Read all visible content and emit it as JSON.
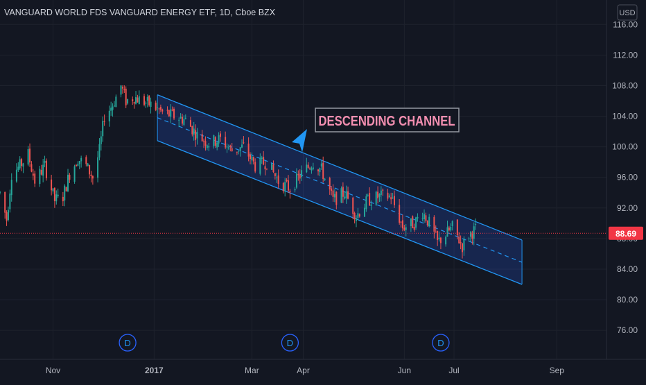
{
  "symbol": {
    "title": "VANGUARD WORLD FDS VANGUARD ENERGY ETF, 1D, Cboe BZX"
  },
  "currency": "USD",
  "last_price": {
    "value": 88.69,
    "label": "88.69",
    "color": "#f23645"
  },
  "annotation": {
    "text": "DESCENDING CHANNEL",
    "text_color": "#f48fb1",
    "border_color": "#9598a1",
    "arrow_color": "#2196f3"
  },
  "dividend_markers": [
    {
      "label": "D",
      "date": "2016-12-16"
    },
    {
      "label": "D",
      "date": "2017-03-24"
    },
    {
      "label": "D",
      "date": "2017-06-23"
    }
  ],
  "chart_data": {
    "type": "candlestick",
    "title": "VANGUARD WORLD FDS VANGUARD ENERGY ETF, 1D, Cboe BZX",
    "xlim": [
      "2016-09-30",
      "2017-10-01"
    ],
    "ylim": [
      72.2,
      119.2
    ],
    "y_ticks": [
      "116.00",
      "112.00",
      "108.00",
      "104.00",
      "100.00",
      "96.00",
      "92.00",
      "88.00",
      "84.00",
      "80.00",
      "76.00"
    ],
    "x_ticks": [
      {
        "label": "Nov",
        "date": "2016-11-01"
      },
      {
        "label": "2017",
        "date": "2017-01-01"
      },
      {
        "label": "Mar",
        "date": "2017-03-01"
      },
      {
        "label": "Apr",
        "date": "2017-04-01"
      },
      {
        "label": "Jun",
        "date": "2017-06-01"
      },
      {
        "label": "Jul",
        "date": "2017-07-01"
      },
      {
        "label": "Sep",
        "date": "2017-09-01"
      }
    ],
    "up_color": "#26a69a",
    "down_color": "#ef5350",
    "grid": true,
    "price_path": [
      [
        "2016-09-30",
        94.0
      ],
      [
        "2016-10-04",
        90.5
      ],
      [
        "2016-10-07",
        96.5
      ],
      [
        "2016-10-12",
        97.5
      ],
      [
        "2016-10-17",
        99.0
      ],
      [
        "2016-10-21",
        95.5
      ],
      [
        "2016-10-27",
        97.5
      ],
      [
        "2016-11-02",
        93.0
      ],
      [
        "2016-11-07",
        93.5
      ],
      [
        "2016-11-11",
        96.5
      ],
      [
        "2016-11-16",
        98.5
      ],
      [
        "2016-11-21",
        97.5
      ],
      [
        "2016-11-25",
        96.0
      ],
      [
        "2016-11-29",
        99.5
      ],
      [
        "2016-12-02",
        104.0
      ],
      [
        "2016-12-07",
        105.5
      ],
      [
        "2016-12-12",
        108.0
      ],
      [
        "2016-12-15",
        106.0
      ],
      [
        "2016-12-20",
        106.5
      ],
      [
        "2016-12-30",
        105.5
      ],
      [
        "2017-01-06",
        104.5
      ],
      [
        "2017-01-13",
        104.0
      ],
      [
        "2017-01-20",
        103.5
      ],
      [
        "2017-01-27",
        101.5
      ],
      [
        "2017-02-03",
        100.5
      ],
      [
        "2017-02-10",
        101.0
      ],
      [
        "2017-02-17",
        99.5
      ],
      [
        "2017-02-24",
        100.0
      ],
      [
        "2017-03-03",
        97.5
      ],
      [
        "2017-03-10",
        98.0
      ],
      [
        "2017-03-17",
        95.5
      ],
      [
        "2017-03-24",
        94.5
      ],
      [
        "2017-03-31",
        96.5
      ],
      [
        "2017-04-07",
        98.0
      ],
      [
        "2017-04-12",
        97.0
      ],
      [
        "2017-04-19",
        93.0
      ],
      [
        "2017-04-26",
        94.0
      ],
      [
        "2017-05-03",
        91.0
      ],
      [
        "2017-05-10",
        93.0
      ],
      [
        "2017-05-17",
        93.5
      ],
      [
        "2017-05-24",
        93.5
      ],
      [
        "2017-05-31",
        89.5
      ],
      [
        "2017-06-07",
        90.0
      ],
      [
        "2017-06-12",
        91.5
      ],
      [
        "2017-06-16",
        90.0
      ],
      [
        "2017-06-21",
        87.5
      ],
      [
        "2017-06-26",
        88.5
      ],
      [
        "2017-06-30",
        89.5
      ],
      [
        "2017-07-06",
        87.0
      ],
      [
        "2017-07-10",
        88.5
      ],
      [
        "2017-07-14",
        89.2
      ]
    ],
    "channel": {
      "upper_start": [
        "2017-01-03",
        106.8
      ],
      "upper_end": [
        "2017-08-11",
        87.8
      ],
      "lower_start": [
        "2017-01-03",
        100.8
      ],
      "lower_end": [
        "2017-08-11",
        82.0
      ],
      "line_color": "#2196f3",
      "fill_color": "#2962ff"
    }
  }
}
